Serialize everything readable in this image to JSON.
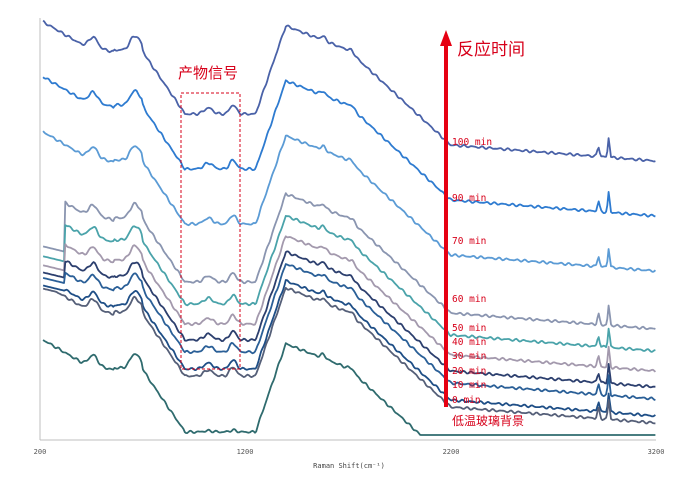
{
  "chart_data": {
    "type": "line",
    "title": "",
    "xlabel": "Raman Shift(cm⁻¹)",
    "ylabel": "",
    "xlim": [
      200,
      3200
    ],
    "x_ticks": [
      "200",
      "1200",
      "2200",
      "3200"
    ],
    "grid": false,
    "legend": "inline labels to the right of arrow",
    "annotations": {
      "arrow_label": "反应时间",
      "product_box_label": "产物信号",
      "product_box_range_cm": [
        900,
        1200
      ],
      "background_label": "低温玻璃背景"
    },
    "series": [
      {
        "name": "100 min",
        "color": "#4a62a8",
        "offset": 0
      },
      {
        "name": "90 min",
        "color": "#2e7bd0",
        "offset": 55
      },
      {
        "name": "70 min",
        "color": "#5b9bd5",
        "offset": 110
      },
      {
        "name": "60 min",
        "color": "#8a95b0",
        "offset": 168
      },
      {
        "name": "50 min",
        "color": "#4aa3aa",
        "offset": 190
      },
      {
        "name": "40 min",
        "color": "#a399ad",
        "offset": 210
      },
      {
        "name": "30 min",
        "color": "#2c3f6e",
        "offset": 226
      },
      {
        "name": "20 min",
        "color": "#2a5f97",
        "offset": 238
      },
      {
        "name": "10 min",
        "color": "#1e4e86",
        "offset": 255
      },
      {
        "name": "0 min",
        "color": "#555f78",
        "offset": 262
      },
      {
        "name": "低温玻璃背景",
        "color": "#2f6b6e",
        "offset": 318
      }
    ],
    "key_peaks_cm": [
      460,
      660,
      1020,
      1140,
      1340,
      1560,
      1600,
      2920,
      2970
    ]
  },
  "labels": {
    "arrow_title": "反应时间",
    "product_title": "产物信号",
    "background_title": "低温玻璃背景",
    "xlabel": "Raman Shift(cm⁻¹)",
    "ticks": [
      "200",
      "1200",
      "2200",
      "3200"
    ],
    "times": [
      "100 min",
      "90 min",
      "70 min",
      "60 min",
      "50 min",
      "40 min",
      "30 min",
      "20 min",
      "10 min",
      "0 min"
    ]
  },
  "colors": {
    "arrow": "#e60012",
    "annotation_text": "#d7001a",
    "axis": "#bfbfbf"
  }
}
